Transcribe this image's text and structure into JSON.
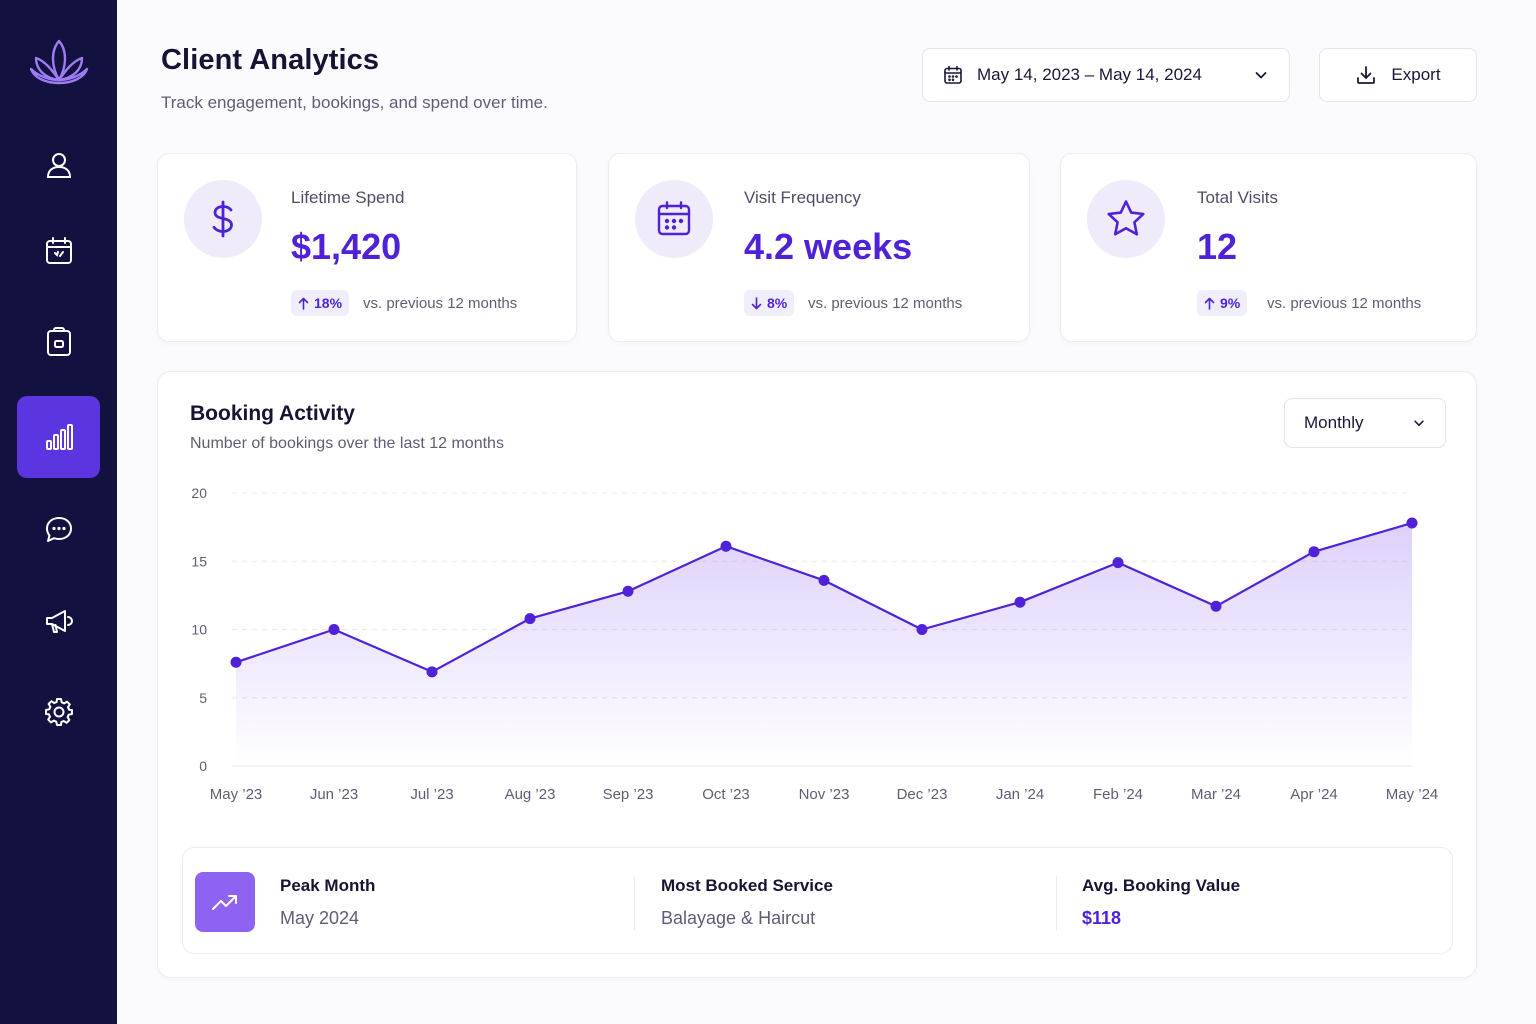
{
  "header": {
    "title": "Client Analytics",
    "subtitle": "Track engagement, bookings, and spend over time.",
    "date_range": "May 14, 2023 – May 14, 2024",
    "export_label": "Export"
  },
  "sidebar": {
    "items": [
      {
        "icon": "user-icon",
        "active": false
      },
      {
        "icon": "calendar-icon",
        "active": false
      },
      {
        "icon": "clipboard-icon",
        "active": false
      },
      {
        "icon": "bar-chart-icon",
        "active": true
      },
      {
        "icon": "chat-icon",
        "active": false
      },
      {
        "icon": "megaphone-icon",
        "active": false
      },
      {
        "icon": "settings-icon",
        "active": false
      }
    ]
  },
  "stats": [
    {
      "label": "Lifetime Spend",
      "value": "$1,420",
      "delta": "18%",
      "direction": "up",
      "compare": "vs. previous 12 months",
      "icon": "dollar-icon"
    },
    {
      "label": "Visit Frequency",
      "value": "4.2 weeks",
      "delta": "8%",
      "direction": "down",
      "compare": "vs. previous 12 months",
      "icon": "calendar-icon"
    },
    {
      "label": "Total Visits",
      "value": "12",
      "delta": "9%",
      "direction": "up",
      "compare": "vs. previous 12 months",
      "icon": "star-icon"
    }
  ],
  "chart": {
    "title": "Booking Activity",
    "subtitle": "Number of bookings over the last 12 months",
    "period": "Monthly"
  },
  "chart_data": {
    "type": "area",
    "categories": [
      "May ’23",
      "Jun ’23",
      "Jul ’23",
      "Aug ’23",
      "Sep ’23",
      "Oct ’23",
      "Nov ’23",
      "Dec ’23",
      "Jan ’24",
      "Feb ’24",
      "Mar ’24",
      "Apr ’24",
      "May ’24"
    ],
    "values": [
      7.6,
      10,
      6.9,
      10.8,
      12.8,
      16.1,
      13.6,
      10,
      12,
      14.9,
      11.7,
      15.7,
      17.8
    ],
    "ylim": [
      0,
      20
    ],
    "yticks": [
      0,
      5,
      10,
      15,
      20
    ],
    "grid": true,
    "colors": {
      "line": "#4f22d8",
      "fill": "#8f63f2"
    }
  },
  "summary": {
    "peak_label": "Peak Month",
    "peak_value": "May 2024",
    "service_label": "Most Booked Service",
    "service_value": "Balayage & Haircut",
    "avg_label": "Avg. Booking Value",
    "avg_value": "$118"
  },
  "colors": {
    "sidebar": "#13113f",
    "accent": "#4f22d8",
    "accent_light": "#efebfb",
    "active_nav": "#5b35e0"
  }
}
